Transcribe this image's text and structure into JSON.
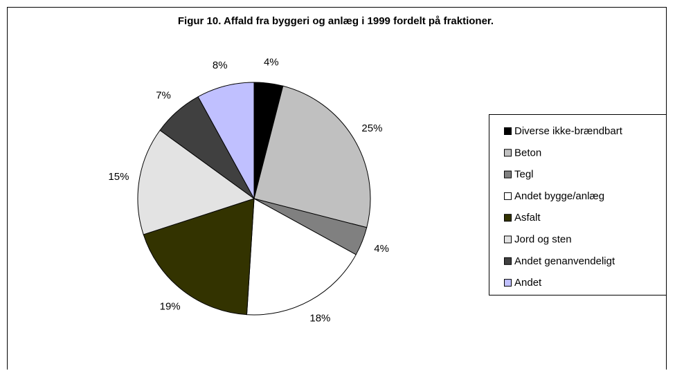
{
  "chart_data": {
    "type": "pie",
    "title": "Figur 10. Affald fra byggeri og anlæg i 1999 fordelt på fraktioner.",
    "categories": [
      "Diverse ikke-brændbart",
      "Beton",
      "Tegl",
      "Andet bygge/anlæg",
      "Asfalt",
      "Jord og sten",
      "Andet genanvendeligt",
      "Andet"
    ],
    "values": [
      4,
      25,
      4,
      18,
      19,
      15,
      7,
      8
    ],
    "value_labels": [
      "4%",
      "25%",
      "4%",
      "18%",
      "19%",
      "15%",
      "7%",
      "8%"
    ],
    "colors": [
      "#000000",
      "#c0c0c0",
      "#808080",
      "#ffffff",
      "#333300",
      "#e3e3e3",
      "#404040",
      "#c0c0ff"
    ],
    "legend": "right"
  }
}
